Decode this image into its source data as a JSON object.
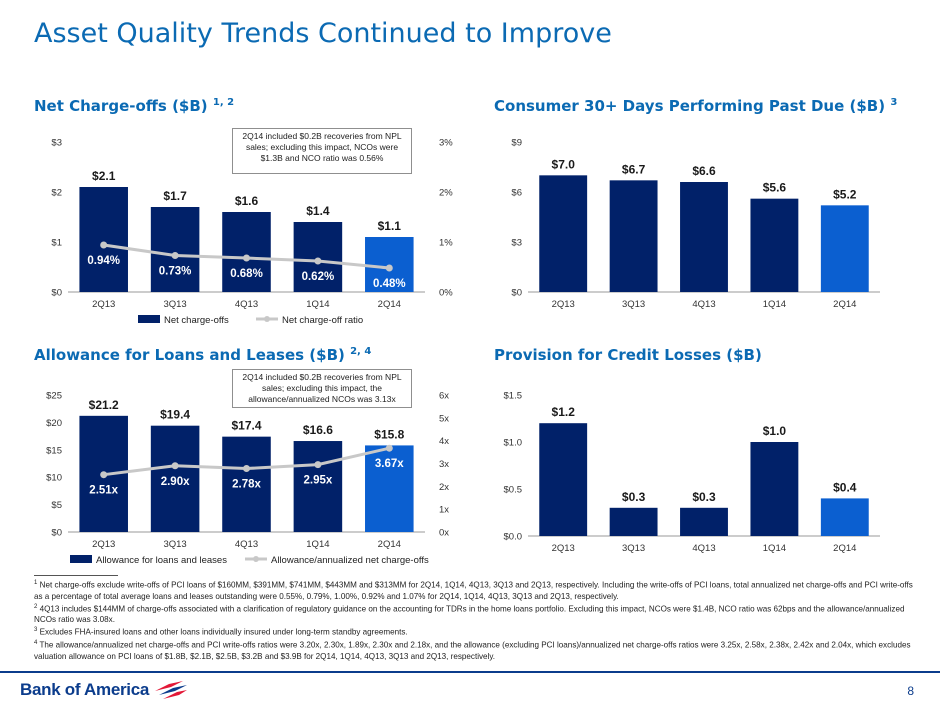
{
  "page": {
    "title": "Asset Quality Trends Continued to Improve",
    "page_number": "8",
    "brand": "Bank of America",
    "colors": {
      "primary_bar": "#012169",
      "highlight_bar": "#0b5fd0",
      "line": "#c8c8c8",
      "title": "#0b6ab3"
    }
  },
  "sections": {
    "nco": {
      "title": "Net Charge-offs ($B)",
      "sup": "1, 2"
    },
    "past_due": {
      "title": "Consumer 30+ Days Performing Past Due ($B)",
      "sup": "3"
    },
    "allowance": {
      "title": "Allowance for Loans and Leases ($B)",
      "sup": "2, 4"
    },
    "provision": {
      "title": "Provision for Credit Losses ($B)"
    }
  },
  "notes": {
    "nco": "2Q14 included $0.2B recoveries from NPL sales; excluding this impact, NCOs were $1.3B and NCO ratio was 0.56%",
    "allowance": "2Q14 included $0.2B recoveries from NPL sales; excluding this impact, the allowance/annualized NCOs was 3.13x"
  },
  "chart_data": [
    {
      "id": "nco",
      "type": "bar",
      "title": "Net Charge-offs ($B)",
      "categories": [
        "2Q13",
        "3Q13",
        "4Q13",
        "1Q14",
        "2Q14"
      ],
      "series": [
        {
          "name": "Net charge-offs",
          "type": "bar",
          "axis": "left",
          "values": [
            2.1,
            1.7,
            1.6,
            1.4,
            1.1
          ],
          "labels": [
            "$2.1",
            "$1.7",
            "$1.6",
            "$1.4",
            "$1.1"
          ]
        },
        {
          "name": "Net charge-off ratio",
          "type": "line",
          "axis": "right",
          "values": [
            0.94,
            0.73,
            0.68,
            0.62,
            0.48
          ],
          "labels": [
            "0.94%",
            "0.73%",
            "0.68%",
            "0.62%",
            "0.48%"
          ]
        }
      ],
      "ylim": [
        0,
        3
      ],
      "yticks": [
        "$0",
        "$1",
        "$2",
        "$3"
      ],
      "y2lim": [
        0,
        3
      ],
      "y2ticks": [
        "0%",
        "1%",
        "2%",
        "3%"
      ],
      "legend": [
        "Net charge-offs",
        "Net charge-off ratio"
      ],
      "legend_position": "bottom",
      "highlight_last": true
    },
    {
      "id": "past_due",
      "type": "bar",
      "title": "Consumer 30+ Days Performing Past Due ($B)",
      "categories": [
        "2Q13",
        "3Q13",
        "4Q13",
        "1Q14",
        "2Q14"
      ],
      "series": [
        {
          "name": "Consumer 30+ days performing past due",
          "type": "bar",
          "axis": "left",
          "values": [
            7.0,
            6.7,
            6.6,
            5.6,
            5.2
          ],
          "labels": [
            "$7.0",
            "$6.7",
            "$6.6",
            "$5.6",
            "$5.2"
          ]
        }
      ],
      "ylim": [
        0,
        9
      ],
      "yticks": [
        "$0",
        "$3",
        "$6",
        "$9"
      ],
      "highlight_last": true
    },
    {
      "id": "allowance",
      "type": "bar",
      "title": "Allowance for Loans and Leases ($B)",
      "categories": [
        "2Q13",
        "3Q13",
        "4Q13",
        "1Q14",
        "2Q14"
      ],
      "series": [
        {
          "name": "Allowance for loans and leases",
          "type": "bar",
          "axis": "left",
          "values": [
            21.2,
            19.4,
            17.4,
            16.6,
            15.8
          ],
          "labels": [
            "$21.2",
            "$19.4",
            "$17.4",
            "$16.6",
            "$15.8"
          ]
        },
        {
          "name": "Allowance/annualized net charge-offs",
          "type": "line",
          "axis": "right",
          "values": [
            2.51,
            2.9,
            2.78,
            2.95,
            3.67
          ],
          "labels": [
            "2.51x",
            "2.90x",
            "2.78x",
            "2.95x",
            "3.67x"
          ]
        }
      ],
      "ylim": [
        0,
        25
      ],
      "yticks": [
        "$0",
        "$5",
        "$10",
        "$15",
        "$20",
        "$25"
      ],
      "y2lim": [
        0,
        6
      ],
      "y2ticks": [
        "0x",
        "1x",
        "2x",
        "3x",
        "4x",
        "5x",
        "6x"
      ],
      "legend": [
        "Allowance for loans and leases",
        "Allowance/annualized net charge-offs"
      ],
      "legend_position": "bottom",
      "highlight_last": true
    },
    {
      "id": "provision",
      "type": "bar",
      "title": "Provision for Credit Losses ($B)",
      "categories": [
        "2Q13",
        "3Q13",
        "4Q13",
        "1Q14",
        "2Q14"
      ],
      "series": [
        {
          "name": "Provision for credit losses",
          "type": "bar",
          "axis": "left",
          "values": [
            1.2,
            0.3,
            0.3,
            1.0,
            0.4
          ],
          "labels": [
            "$1.2",
            "$0.3",
            "$0.3",
            "$1.0",
            "$0.4"
          ]
        }
      ],
      "ylim": [
        0,
        1.5
      ],
      "yticks": [
        "$0.0",
        "$0.5",
        "$1.0",
        "$1.5"
      ],
      "highlight_last": true
    }
  ],
  "footnotes": [
    {
      "num": "1",
      "text": "Net charge-offs exclude write-offs of PCI loans of $160MM, $391MM, $741MM, $443MM and $313MM for 2Q14, 1Q14, 4Q13, 3Q13 and 2Q13, respectively. Including the write-offs of PCI loans, total annualized net charge-offs and PCI write-offs as a percentage of total average loans and leases outstanding were 0.55%, 0.79%, 1.00%, 0.92% and 1.07% for 2Q14, 1Q14, 4Q13, 3Q13 and 2Q13, respectively."
    },
    {
      "num": "2",
      "text": "4Q13 includes $144MM of charge-offs associated with a clarification of regulatory guidance on the accounting for TDRs in the home loans portfolio. Excluding this impact, NCOs were $1.4B, NCO ratio was 62bps and the allowance/annualized NCOs ratio was 3.08x."
    },
    {
      "num": "3",
      "text": "Excludes FHA-insured loans and other loans individually insured under long-term standby agreements."
    },
    {
      "num": "4",
      "text": "The allowance/annualized net charge-offs and PCI write-offs ratios were 3.20x, 2.30x, 1.89x, 2.30x and 2.18x, and the allowance (excluding PCI loans)/annualized net charge-offs ratios were 3.25x, 2.58x, 2.38x, 2.42x and 2.04x, which excludes valuation allowance on PCI loans of $1.8B, $2.1B, $2.5B, $3.2B and $3.9B for 2Q14, 1Q14, 4Q13, 3Q13 and 2Q13, respectively."
    }
  ]
}
